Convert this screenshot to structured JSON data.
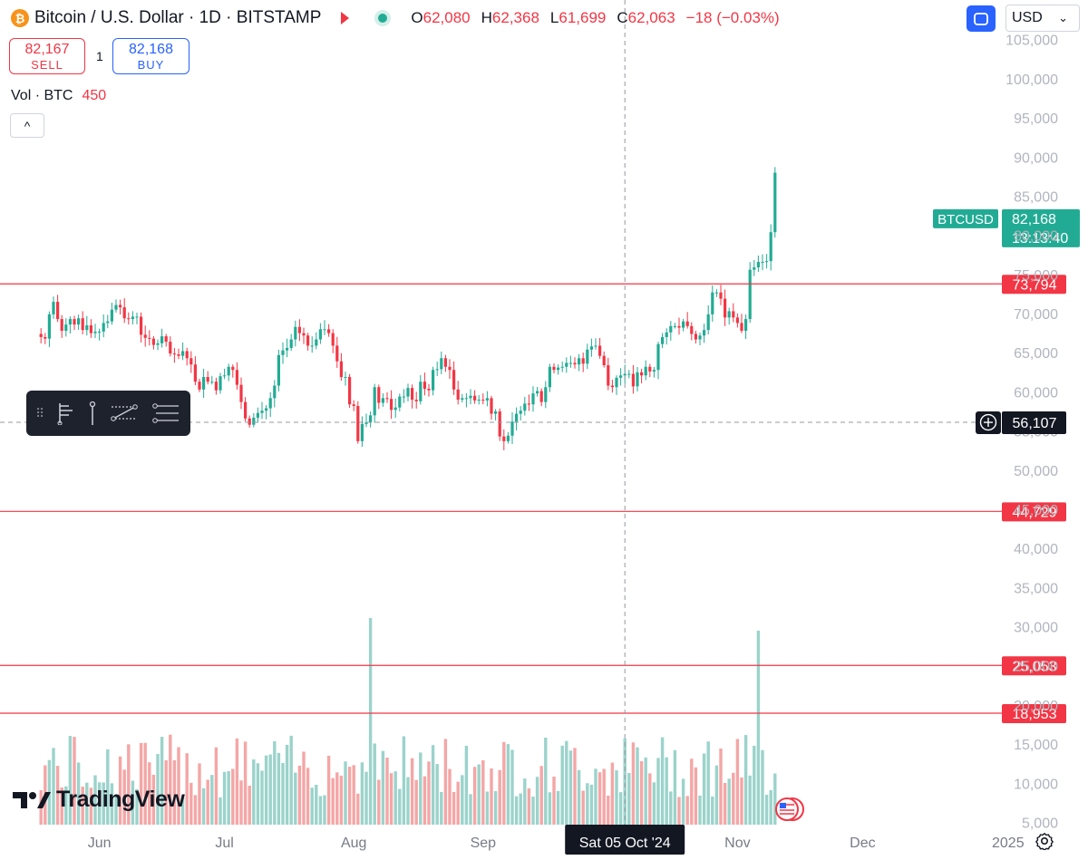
{
  "header": {
    "coin_glyph": "₿",
    "title": "Bitcoin / U.S. Dollar · 1D · BITSTAMP",
    "open_label": "O",
    "open": "62,080",
    "high_label": "H",
    "high": "62,368",
    "low_label": "L",
    "low": "61,699",
    "close_label": "C",
    "close": "62,063",
    "change": "−18 (−0.03%)"
  },
  "trade": {
    "sell_price": "82,167",
    "sell_label": "SELL",
    "quantity": "1",
    "buy_price": "82,168",
    "buy_label": "BUY"
  },
  "volume_legend": {
    "label": "Vol · BTC",
    "value": "450"
  },
  "collapse_glyph": "^",
  "currency": {
    "selected": "USD",
    "chevron": "⌄"
  },
  "brand": {
    "name": "TradingView"
  },
  "colors": {
    "up": "#22ab94",
    "down": "#f23645",
    "up_volume": "#9bd3cb",
    "down_volume": "#f4a6a6",
    "accent": "#2962ff"
  },
  "chart_data": {
    "type": "candlestick",
    "symbol": "BTCUSD",
    "price_axis": {
      "range": [
        5000,
        106000
      ],
      "ticks": [
        5000,
        10000,
        15000,
        20000,
        25000,
        30000,
        35000,
        40000,
        45000,
        50000,
        55000,
        60000,
        65000,
        70000,
        75000,
        80000,
        85000,
        90000,
        95000,
        100000,
        105000
      ],
      "tick_labels": [
        "5,000",
        "10,000",
        "15,000",
        "20,000",
        "25,000",
        "30,000",
        "35,000",
        "40,000",
        "45,000",
        "50,000",
        "55,000",
        "60,000",
        "65,000",
        "70,000",
        "75,000",
        "80,000",
        "85,000",
        "90,000",
        "95,000",
        "100,000",
        "105,000"
      ]
    },
    "time_axis": {
      "labels": [
        "Jun",
        "Jul",
        "Aug",
        "Sep",
        "Oct",
        "Nov",
        "Dec",
        "2025"
      ],
      "label_dates": [
        "2024-06-01",
        "2024-07-01",
        "2024-08-01",
        "2024-09-01",
        "2024-10-01",
        "2024-11-01",
        "2024-12-01",
        "2025-01-01"
      ],
      "range": [
        "2024-05-18",
        "2025-01-08"
      ]
    },
    "candles": {
      "start_date": "2024-05-18",
      "close": [
        67000,
        66800,
        69900,
        71500,
        69300,
        67800,
        68600,
        69300,
        68600,
        69400,
        67900,
        68500,
        67500,
        67700,
        67700,
        68800,
        69000,
        70500,
        71100,
        70800,
        69400,
        69300,
        69600,
        69600,
        67300,
        66900,
        66800,
        66000,
        66200,
        67100,
        66400,
        64900,
        64800,
        64600,
        65200,
        64300,
        63500,
        61300,
        60300,
        61900,
        61300,
        61300,
        60200,
        62000,
        62100,
        63200,
        62800,
        60900,
        58700,
        56600,
        55800,
        56700,
        57300,
        57600,
        57900,
        59200,
        60800,
        64700,
        65300,
        65600,
        66700,
        68300,
        67500,
        67200,
        65900,
        65900,
        66700,
        68000,
        68000,
        67500,
        65900,
        63900,
        61900,
        61900,
        58400,
        58200,
        53700,
        55900,
        56100,
        57000,
        60600,
        58600,
        59200,
        59100,
        57700,
        58000,
        59400,
        59400,
        60500,
        59000,
        58800,
        61300,
        60400,
        60200,
        62800,
        62900,
        64300,
        63200,
        62800,
        60300,
        59000,
        59200,
        59200,
        59500,
        58900,
        59000,
        58900,
        59200,
        57200,
        57500,
        54300,
        53700,
        54400,
        56200,
        57200,
        57600,
        58500,
        58400,
        59800,
        60100,
        58700,
        60600,
        63200,
        62800,
        63100,
        63200,
        63700,
        63700,
        63500,
        64300,
        63600,
        65400,
        65800,
        65900,
        64600,
        63400,
        60800,
        60600,
        61800,
        62100,
        62300,
        62300,
        60700,
        62500,
        62100,
        63200,
        62600,
        62800,
        66100,
        67000,
        67600,
        68400,
        68400,
        68200,
        69000,
        68400,
        67400,
        66700,
        67200,
        67900,
        69900,
        72700,
        72700,
        71900,
        69500,
        70300,
        69500,
        68800,
        67800,
        69300,
        75600,
        75900,
        76600,
        76600,
        76700,
        80400,
        88000
      ]
    },
    "price_lines": [
      {
        "label": "73,794",
        "value": 73794
      },
      {
        "label": "44,729",
        "value": 44729
      },
      {
        "label": "25,053",
        "value": 25053
      },
      {
        "label": "18,953",
        "value": 18953
      }
    ],
    "last_price": {
      "ticker": "BTCUSD",
      "value": "82,168",
      "countdown": "13:13:40",
      "level": 82168
    },
    "crosshair": {
      "price_label": "56,107",
      "price": 56107,
      "date_label": "Sat 05 Oct '24",
      "date": "2024-10-05"
    },
    "volume_bars_visible": true
  }
}
